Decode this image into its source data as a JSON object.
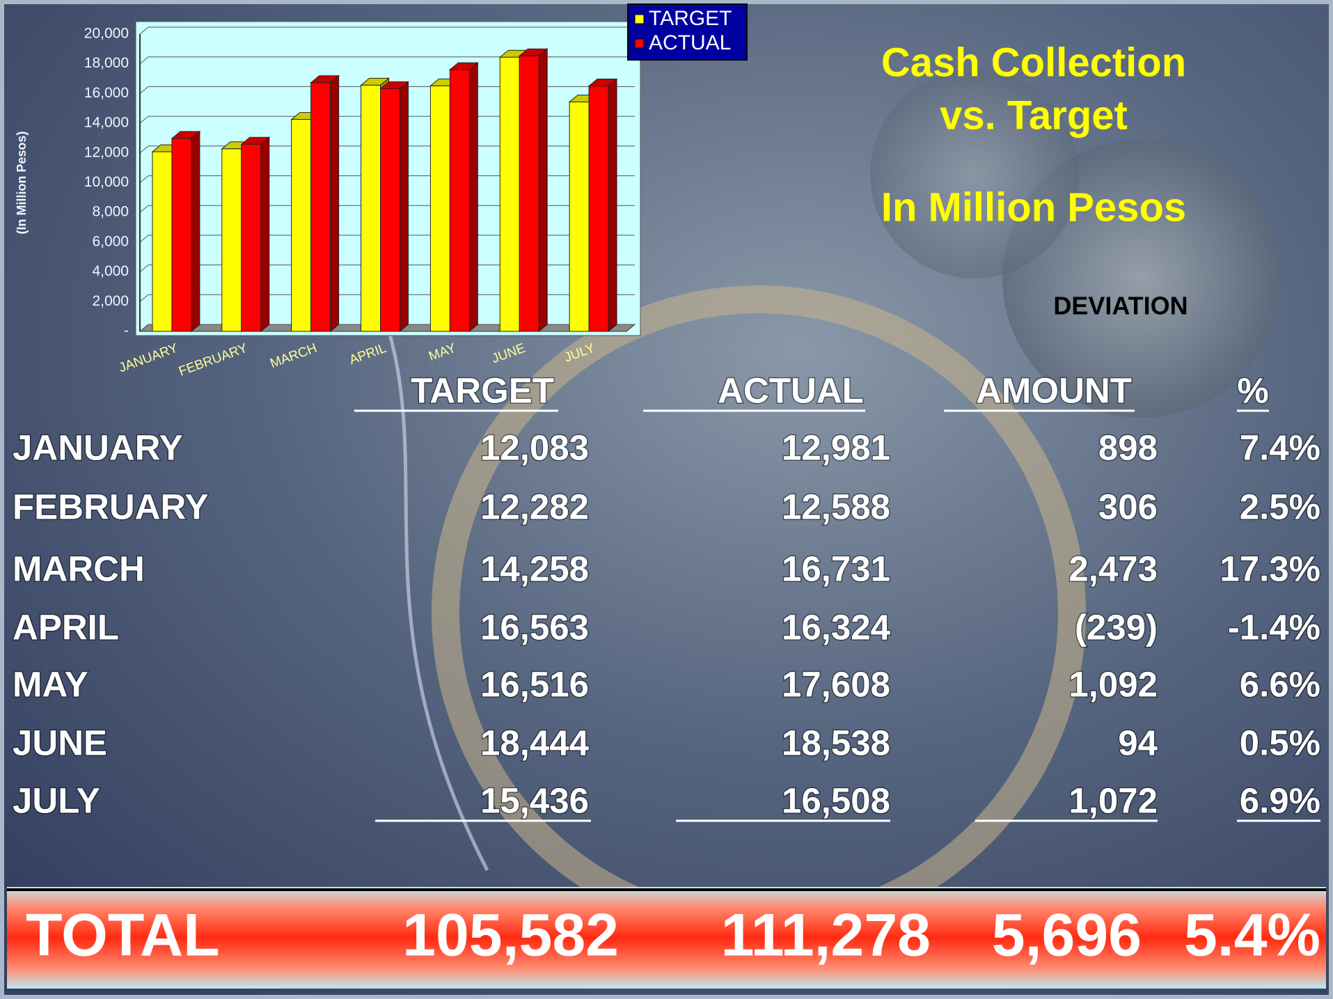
{
  "chart_data": {
    "type": "bar3d",
    "y_label": "(In Million Pesos)",
    "categories": [
      "JANUARY",
      "FEBRUARY",
      "MARCH",
      "APRIL",
      "MAY",
      "JUNE",
      "JULY"
    ],
    "series": [
      {
        "name": "TARGET",
        "color": "#ffff00",
        "values": [
          12083,
          12282,
          14258,
          16563,
          16516,
          18444,
          15436
        ]
      },
      {
        "name": "ACTUAL",
        "color": "#ff0000",
        "values": [
          12981,
          12588,
          16731,
          16324,
          17608,
          18538,
          16508
        ]
      }
    ],
    "ylim": [
      0,
      20000
    ],
    "yticks": [
      {
        "value": 0,
        "label": "-"
      },
      {
        "value": 2000,
        "label": "2,000"
      },
      {
        "value": 4000,
        "label": "4,000"
      },
      {
        "value": 6000,
        "label": "6,000"
      },
      {
        "value": 8000,
        "label": "8,000"
      },
      {
        "value": 10000,
        "label": "10,000"
      },
      {
        "value": 12000,
        "label": "12,000"
      },
      {
        "value": 14000,
        "label": "14,000"
      },
      {
        "value": 16000,
        "label": "16,000"
      },
      {
        "value": 18000,
        "label": "18,000"
      },
      {
        "value": 20000,
        "label": "20,000"
      }
    ],
    "grid": true,
    "legend": "top-right"
  },
  "slide": {
    "title": [
      "Cash Collection",
      "vs. Target",
      "In Million Pesos"
    ],
    "deviation": "DEVIATION",
    "table": {
      "header": [
        "TARGET",
        "ACTUAL",
        "AMOUNT",
        "%"
      ],
      "rows": [
        [
          "JANUARY",
          "12,083",
          "12,981",
          "898",
          "7.4%"
        ],
        [
          "FEBRUARY",
          "12,282",
          "12,588",
          "306",
          "2.5%"
        ],
        [
          "MARCH",
          "14,258",
          "16,731",
          "2,473",
          "17.3%"
        ],
        [
          "APRIL",
          "16,563",
          "16,324",
          "(239)",
          "-1.4%"
        ],
        [
          "MAY",
          "16,516",
          "17,608",
          "1,092",
          "6.6%"
        ],
        [
          "JUNE",
          "18,444",
          "18,538",
          "94",
          "0.5%"
        ],
        [
          "JULY",
          "15,436",
          "16,508",
          "1,072",
          "6.9%"
        ]
      ],
      "total": [
        "TOTAL",
        "105,582",
        "111,278",
        "5,696",
        "5.4%"
      ]
    }
  }
}
